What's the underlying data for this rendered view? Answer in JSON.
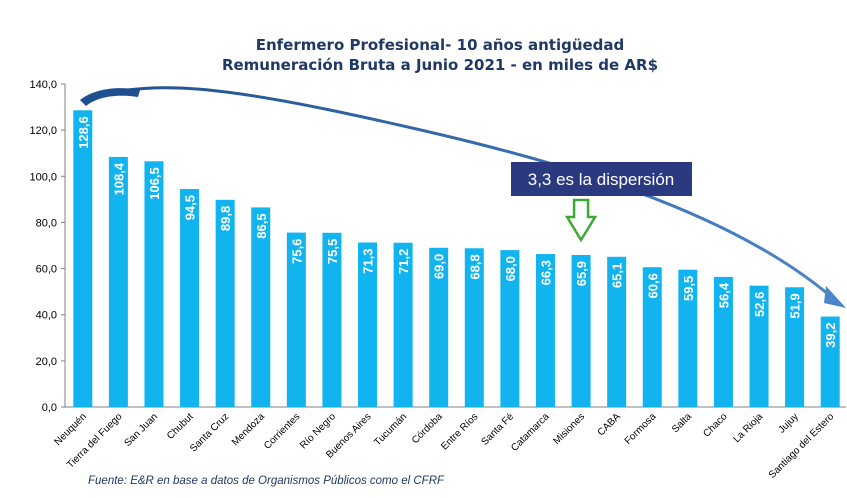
{
  "chart_data": {
    "type": "bar",
    "title": "Enfermero Profesional- 10 años antigüedad",
    "subtitle": "Remuneración Bruta a Junio 2021 - en miles de AR$",
    "categories": [
      "Neuquén",
      "Tierra del Fuego",
      "San Juan",
      "Chubut",
      "Santa Cruz",
      "Mendoza",
      "Corrientes",
      "Río Negro",
      "Buenos Aires",
      "Tucumán",
      "Córdoba",
      "Entre Ríos",
      "Santa Fé",
      "Catamarca",
      "Misiones",
      "CABA",
      "Formosa",
      "Salta",
      "Chaco",
      "La Rioja",
      "Jujuy",
      "Santiago del Estero"
    ],
    "values": [
      128.6,
      108.4,
      106.5,
      94.5,
      89.8,
      86.5,
      75.6,
      75.5,
      71.3,
      71.2,
      69.0,
      68.8,
      68.0,
      66.3,
      65.9,
      65.1,
      60.6,
      59.5,
      56.4,
      52.6,
      51.9,
      39.2
    ],
    "value_labels": [
      "128,6",
      "108,4",
      "106,5",
      "94,5",
      "89,8",
      "86,5",
      "75,6",
      "75,5",
      "71,3",
      "71,2",
      "69,0",
      "68,8",
      "68,0",
      "66,3",
      "65,9",
      "65,1",
      "60,6",
      "59,5",
      "56,4",
      "52,6",
      "51,9",
      "39,2"
    ],
    "yticks": [
      "0,0",
      "20,0",
      "40,0",
      "60,0",
      "80,0",
      "100,0",
      "120,0",
      "140,0"
    ],
    "ylim": [
      0,
      140
    ],
    "xlabel": "",
    "ylabel": "",
    "grid": false,
    "bar_color": "#12b4f0"
  },
  "annotation": {
    "callout_text": "3,3 es la dispersión",
    "callout_color": "#2b3a80",
    "arrow_color": "#2e5e9e",
    "marker_color": "#3aaa35",
    "marker_category": "Misiones"
  },
  "source": "Fuente: E&R en base a datos de Organismos Públicos como el CFRF"
}
